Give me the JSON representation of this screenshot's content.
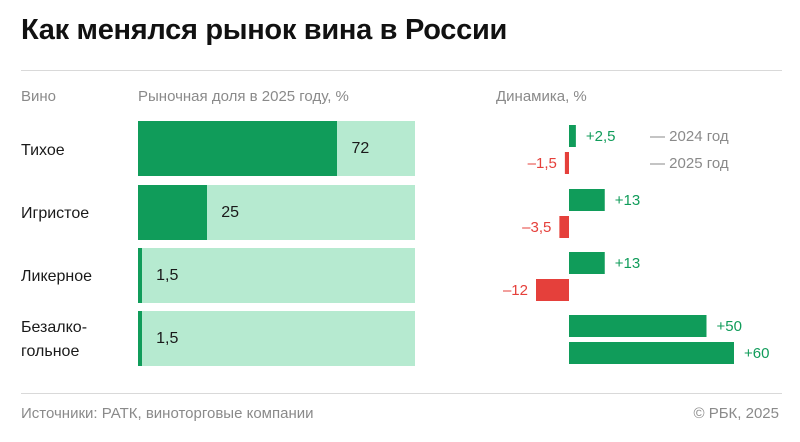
{
  "title": "Как менялся рынок вина в России",
  "headers": {
    "category": "Вино",
    "share": "Рыночная доля в 2025 году, %",
    "dynamics": "Динамика, %"
  },
  "legend": {
    "y2024": "— 2024 год",
    "y2025": "— 2025 год"
  },
  "colors": {
    "positive": "#109c5a",
    "negative": "#e5403b",
    "share_fill": "#109c5a",
    "share_bg": "#b6ead0"
  },
  "chart_data": {
    "type": "bar",
    "title": "Как менялся рынок вина в России",
    "categories": [
      "Тихое",
      "Игристое",
      "Ликерное",
      "Безалко-гольное"
    ],
    "series": [
      {
        "name": "Рыночная доля в 2025 году, %",
        "values": [
          72,
          25,
          1.5,
          1.5
        ],
        "labels": [
          "72",
          "25",
          "1,5",
          "1,5"
        ]
      },
      {
        "name": "Динамика 2024 год, %",
        "values": [
          2.5,
          13,
          13,
          50
        ],
        "labels": [
          "+2,5",
          "+13",
          "+13",
          "+50"
        ]
      },
      {
        "name": "Динамика 2025 год, %",
        "values": [
          -1.5,
          -3.5,
          -12,
          60
        ],
        "labels": [
          "–1,5",
          "–3,5",
          "–12",
          "+60"
        ]
      }
    ],
    "share_ylim": [
      0,
      100
    ]
  },
  "rows": [
    {
      "label_lines": [
        "Тихое"
      ]
    },
    {
      "label_lines": [
        "Игристое"
      ]
    },
    {
      "label_lines": [
        "Ликерное"
      ]
    },
    {
      "label_lines": [
        "Безалко-",
        "гольное"
      ]
    }
  ],
  "footer": {
    "source": "Источники: РАТК, виноторговые компании",
    "copyright": "© РБК, 2025"
  }
}
